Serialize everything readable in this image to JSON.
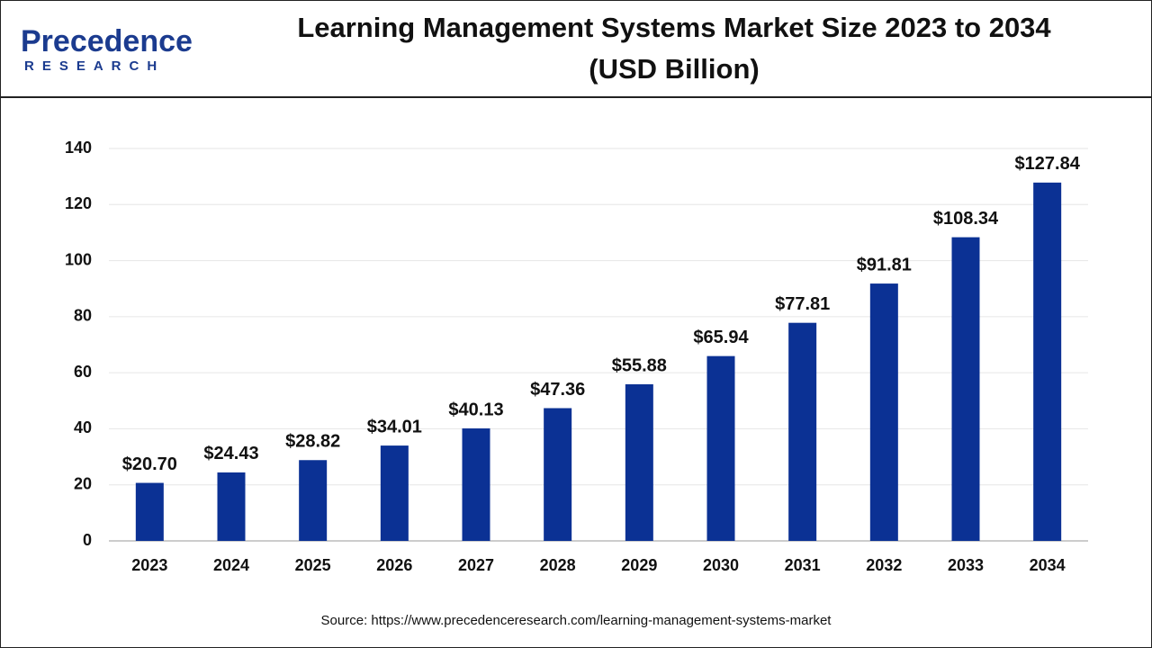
{
  "logo": {
    "name": "Precedence",
    "tagline": "RESEARCH"
  },
  "chart_data": {
    "type": "bar",
    "title": [
      "Learning Management Systems Market Size 2023 to 2034",
      "(USD Billion)"
    ],
    "categories": [
      "2023",
      "2024",
      "2025",
      "2026",
      "2027",
      "2028",
      "2029",
      "2030",
      "2031",
      "2032",
      "2033",
      "2034"
    ],
    "values": [
      20.7,
      24.43,
      28.82,
      34.01,
      40.13,
      47.36,
      55.88,
      65.94,
      77.81,
      91.81,
      108.34,
      127.84
    ],
    "value_labels": [
      "$20.70",
      "$24.43",
      "$28.82",
      "$34.01",
      "$40.13",
      "$47.36",
      "$55.88",
      "$65.94",
      "$77.81",
      "$91.81",
      "$108.34",
      "$127.84"
    ],
    "color": "#0b3194",
    "ylim": [
      0,
      140
    ],
    "yticks": [
      0,
      20,
      40,
      60,
      80,
      100,
      120,
      140
    ],
    "grid": true,
    "source": "Source: https://www.precedenceresearch.com/learning-management-systems-market"
  }
}
